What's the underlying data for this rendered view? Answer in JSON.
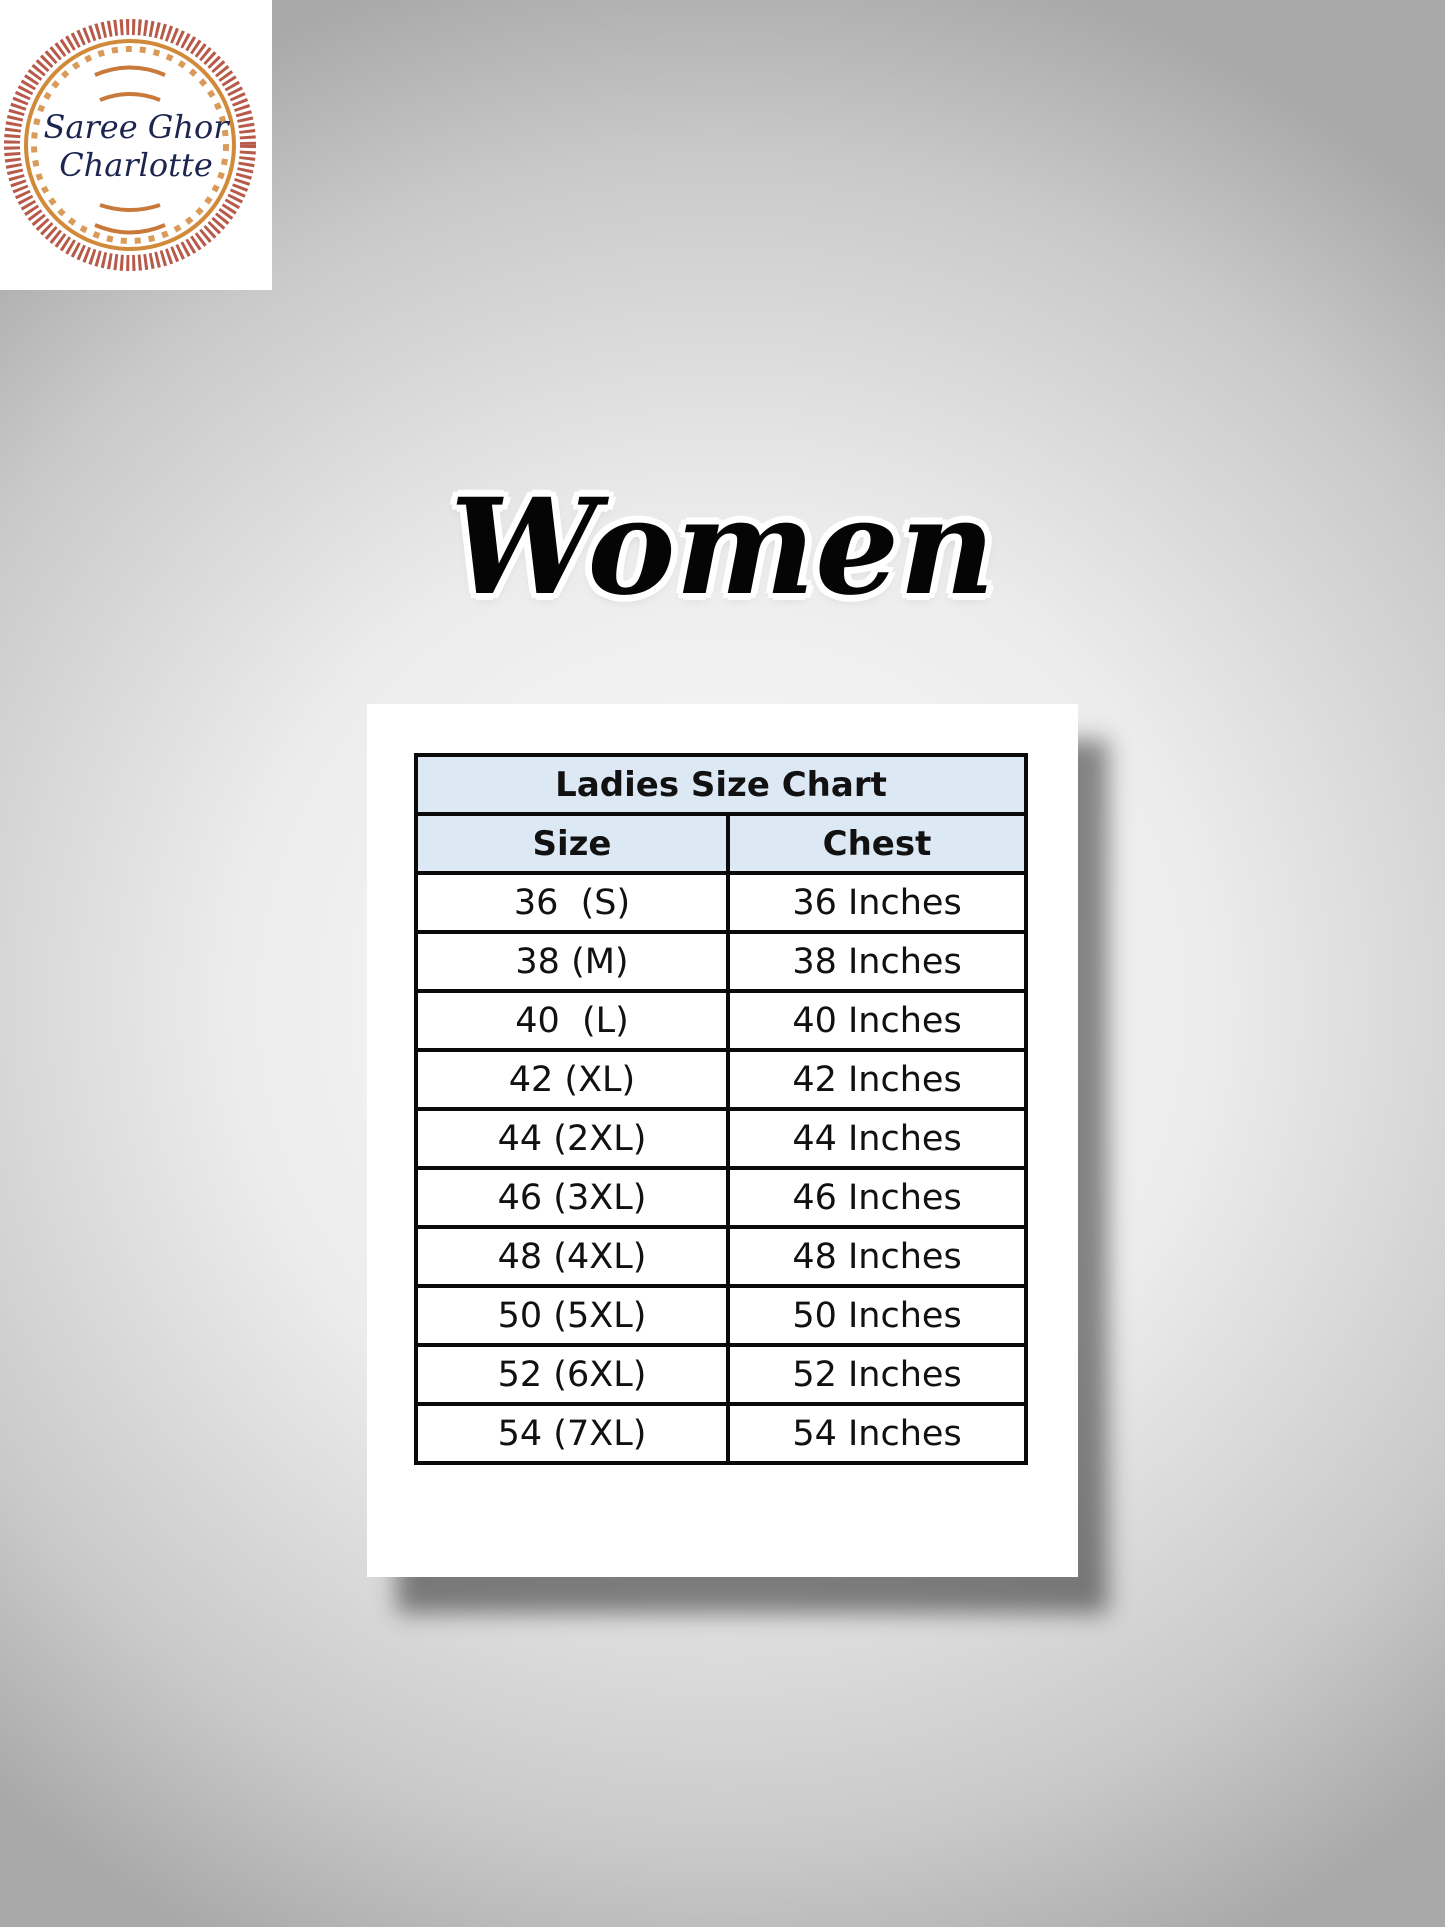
{
  "logo": {
    "line1": "Saree Ghor",
    "line2": "Charlotte"
  },
  "heading": "Women",
  "size_chart": {
    "title": "Ladies Size Chart",
    "columns": [
      "Size",
      "Chest"
    ],
    "rows": [
      [
        "36  (S)",
        "36 Inches"
      ],
      [
        "38 (M)",
        "38 Inches"
      ],
      [
        "40  (L)",
        "40 Inches"
      ],
      [
        "42 (XL)",
        "42 Inches"
      ],
      [
        "44 (2XL)",
        "44 Inches"
      ],
      [
        "46 (3XL)",
        "46 Inches"
      ],
      [
        "48 (4XL)",
        "48 Inches"
      ],
      [
        "50 (5XL)",
        "50 Inches"
      ],
      [
        "52 (6XL)",
        "52 Inches"
      ],
      [
        "54 (7XL)",
        "54 Inches"
      ]
    ],
    "header_color": "#dde8f5"
  }
}
